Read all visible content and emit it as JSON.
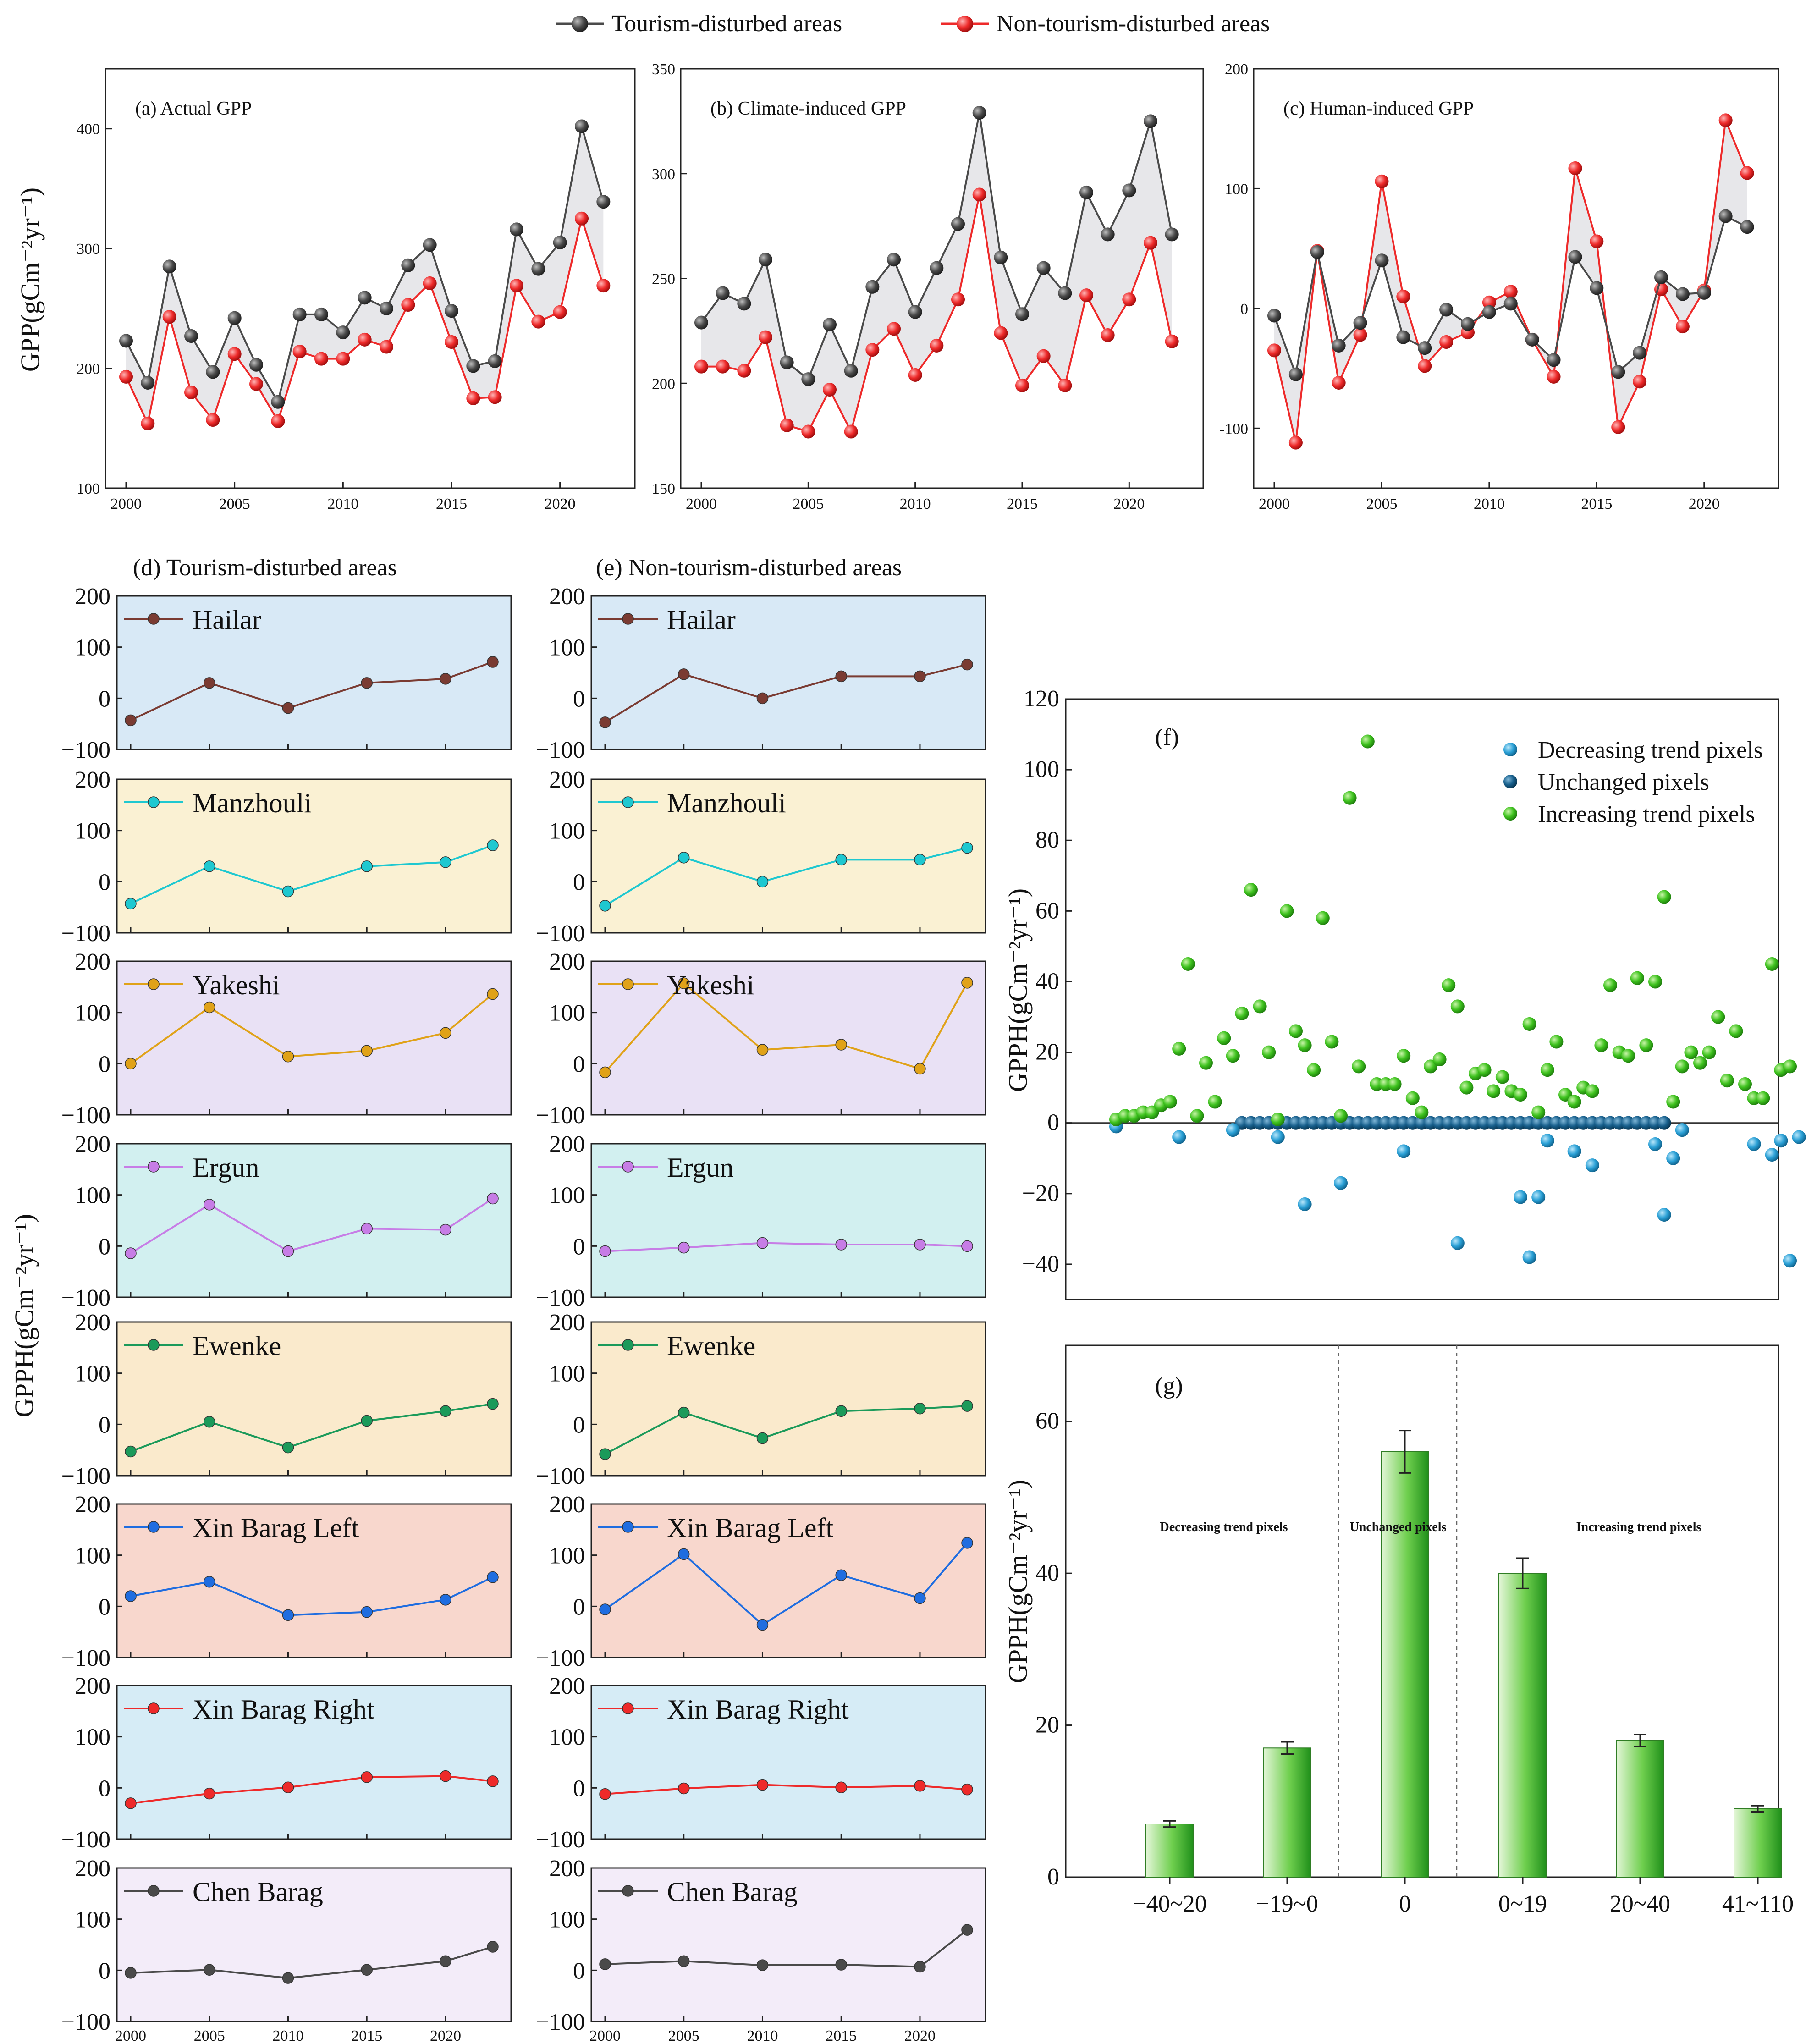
{
  "legend_top": {
    "tourism": "Tourism-disturbed areas",
    "non_tourism": "Non-tourism-disturbed areas"
  },
  "colors": {
    "tourism": "#4a4a4a",
    "non_tourism": "#ee2a2a",
    "fill": "#e4e4e8",
    "green": "#3ec21e",
    "decrease": "#2aa0d6",
    "unchanged": "#175f8c"
  },
  "axis_labels": {
    "gpp": "GPP(gCm⁻²yr⁻¹)",
    "gpph": "GPPH(gCm⁻²yr⁻¹)"
  },
  "section_titles": {
    "d": "(d) Tourism-disturbed areas",
    "e": "(e) Non-tourism-disturbed areas"
  },
  "chart_data": [
    {
      "id": "a",
      "type": "line",
      "title": "(a) Actual GPP",
      "x": [
        2000,
        2001,
        2002,
        2003,
        2004,
        2005,
        2006,
        2007,
        2008,
        2009,
        2010,
        2011,
        2012,
        2013,
        2014,
        2015,
        2016,
        2017,
        2018,
        2019,
        2020,
        2021,
        2022
      ],
      "series": [
        {
          "name": "Tourism-disturbed areas",
          "values": [
            223,
            188,
            285,
            227,
            197,
            242,
            203,
            172,
            245,
            245,
            230,
            259,
            250,
            286,
            303,
            248,
            202,
            206,
            316,
            283,
            305,
            402,
            339
          ]
        },
        {
          "name": "Non-tourism-disturbed areas",
          "values": [
            193,
            154,
            243,
            180,
            157,
            212,
            187,
            156,
            214,
            208,
            208,
            224,
            218,
            253,
            271,
            222,
            175,
            176,
            269,
            239,
            247,
            325,
            269
          ]
        }
      ],
      "ylim": [
        100,
        450
      ],
      "yticks": [
        100,
        200,
        300,
        400
      ],
      "xticks": [
        2000,
        2005,
        2010,
        2015,
        2020
      ]
    },
    {
      "id": "b",
      "type": "line",
      "title": "(b) Climate-induced  GPP",
      "x": [
        2000,
        2001,
        2002,
        2003,
        2004,
        2005,
        2006,
        2007,
        2008,
        2009,
        2010,
        2011,
        2012,
        2013,
        2014,
        2015,
        2016,
        2017,
        2018,
        2019,
        2020,
        2021,
        2022
      ],
      "series": [
        {
          "name": "Tourism-disturbed areas",
          "values": [
            229,
            243,
            238,
            259,
            210,
            202,
            228,
            206,
            246,
            259,
            234,
            255,
            276,
            329,
            260,
            233,
            255,
            243,
            291,
            271,
            292,
            325,
            271
          ]
        },
        {
          "name": "Non-tourism-disturbed areas",
          "values": [
            208,
            208,
            206,
            222,
            180,
            177,
            197,
            177,
            216,
            226,
            204,
            218,
            240,
            290,
            224,
            199,
            213,
            199,
            242,
            223,
            240,
            267,
            220
          ]
        }
      ],
      "ylim": [
        150,
        350
      ],
      "yticks": [
        150,
        200,
        250,
        300,
        350
      ],
      "xticks": [
        2000,
        2005,
        2010,
        2015,
        2020
      ]
    },
    {
      "id": "c",
      "type": "line",
      "title": "(c) Human-induced  GPP",
      "x": [
        2000,
        2001,
        2002,
        2003,
        2004,
        2005,
        2006,
        2007,
        2008,
        2009,
        2010,
        2011,
        2012,
        2013,
        2014,
        2015,
        2016,
        2017,
        2018,
        2019,
        2020,
        2021,
        2022
      ],
      "series": [
        {
          "name": "Tourism-disturbed areas",
          "values": [
            -6,
            -55,
            47,
            -31,
            -12,
            40,
            -24,
            -33,
            -1,
            -13,
            -3,
            4,
            -26,
            -43,
            43,
            17,
            -53,
            -37,
            26,
            12,
            13,
            77,
            68
          ]
        },
        {
          "name": "Non-tourism-disturbed areas",
          "values": [
            -35,
            -112,
            48,
            -62,
            -22,
            106,
            10,
            -48,
            -28,
            -20,
            5,
            14,
            -26,
            -57,
            117,
            56,
            -99,
            -61,
            16,
            -15,
            15,
            157,
            113
          ]
        }
      ],
      "ylim": [
        -150,
        200
      ],
      "yticks": [
        -100,
        0,
        100,
        200
      ],
      "yticklabels": [
        "-100",
        "0",
        "100",
        "200"
      ],
      "xticks": [
        2000,
        2005,
        2010,
        2015,
        2020
      ]
    },
    {
      "id": "d",
      "type": "line",
      "title": "(d) Tourism-disturbed areas",
      "x": [
        2000,
        2005,
        2010,
        2015,
        2020,
        2023
      ],
      "ylim": [
        -100,
        200
      ],
      "yticks": [
        -100,
        0,
        100,
        200
      ],
      "xticks": [
        2000,
        2005,
        2010,
        2015,
        2020
      ],
      "counties": [
        {
          "name": "Hailar",
          "color": "#7a3b32",
          "bg": "#d8e9f6",
          "values": [
            -43,
            30,
            -19,
            30,
            38,
            71
          ]
        },
        {
          "name": "Manzhouli",
          "color": "#1ec8d0",
          "bg": "#faf1d3",
          "values": [
            -43,
            30,
            -19,
            30,
            38,
            71
          ]
        },
        {
          "name": "Yakeshi",
          "color": "#e0a218",
          "bg": "#e9e1f5",
          "values": [
            0,
            110,
            14,
            25,
            60,
            136
          ]
        },
        {
          "name": "Ergun",
          "color": "#c77de6",
          "bg": "#d2f0f0",
          "values": [
            -14,
            81,
            -10,
            34,
            32,
            93
          ]
        },
        {
          "name": "Ewenke",
          "color": "#1b9a5a",
          "bg": "#faeacc",
          "values": [
            -53,
            5,
            -45,
            7,
            26,
            40
          ]
        },
        {
          "name": "Xin Barag Left",
          "color": "#1f6de0",
          "bg": "#f8d7cd",
          "values": [
            20,
            48,
            -17,
            -11,
            13,
            57
          ]
        },
        {
          "name": "Xin Barag Right",
          "color": "#ee2a2a",
          "bg": "#d6ecf6",
          "values": [
            -30,
            -11,
            1,
            21,
            23,
            13
          ]
        },
        {
          "name": "Chen Barag",
          "color": "#4a4a4a",
          "bg": "#f3ecf9",
          "values": [
            -5,
            1,
            -15,
            1,
            18,
            46
          ]
        }
      ]
    },
    {
      "id": "e",
      "type": "line",
      "title": "(e) Non-tourism-disturbed areas",
      "x": [
        2000,
        2005,
        2010,
        2015,
        2020,
        2023
      ],
      "ylim": [
        -100,
        200
      ],
      "yticks": [
        -100,
        0,
        100,
        200
      ],
      "xticks": [
        2000,
        2005,
        2010,
        2015,
        2020
      ],
      "counties": [
        {
          "name": "Hailar",
          "color": "#7a3b32",
          "bg": "#d8e9f6",
          "values": [
            -47,
            47,
            0,
            43,
            43,
            66
          ]
        },
        {
          "name": "Manzhouli",
          "color": "#1ec8d0",
          "bg": "#faf1d3",
          "values": [
            -47,
            47,
            0,
            43,
            43,
            66
          ]
        },
        {
          "name": "Yakeshi",
          "color": "#e0a218",
          "bg": "#e9e1f5",
          "values": [
            -17,
            157,
            27,
            37,
            -10,
            158
          ]
        },
        {
          "name": "Ergun",
          "color": "#c77de6",
          "bg": "#d2f0f0",
          "values": [
            -10,
            -3,
            6,
            3,
            3,
            0
          ]
        },
        {
          "name": "Ewenke",
          "color": "#1b9a5a",
          "bg": "#faeacc",
          "values": [
            -58,
            23,
            -27,
            26,
            31,
            36
          ]
        },
        {
          "name": "Xin Barag Left",
          "color": "#1f6de0",
          "bg": "#f8d7cd",
          "values": [
            -6,
            102,
            -36,
            61,
            16,
            124
          ]
        },
        {
          "name": "Xin Barag Right",
          "color": "#ee2a2a",
          "bg": "#d6ecf6",
          "values": [
            -12,
            -1,
            6,
            1,
            4,
            -3
          ]
        },
        {
          "name": "Chen Barag",
          "color": "#4a4a4a",
          "bg": "#f3ecf9",
          "values": [
            12,
            18,
            10,
            11,
            7,
            79
          ]
        }
      ]
    },
    {
      "id": "f",
      "type": "scatter",
      "title": "(f)",
      "legend": [
        "Decreasing trend pixels",
        "Unchanged pixels",
        "Increasing trend pixels"
      ],
      "ylim": [
        -50,
        120
      ],
      "yticks": [
        -40,
        -20,
        0,
        20,
        40,
        60,
        80,
        100,
        120
      ],
      "increasing": [
        [
          1,
          1
        ],
        [
          2,
          2
        ],
        [
          3,
          2
        ],
        [
          4,
          3
        ],
        [
          5,
          3
        ],
        [
          6,
          5
        ],
        [
          7,
          6
        ],
        [
          8,
          21
        ],
        [
          9,
          45
        ],
        [
          10,
          2
        ],
        [
          11,
          17
        ],
        [
          12,
          6
        ],
        [
          13,
          24
        ],
        [
          14,
          19
        ],
        [
          15,
          31
        ],
        [
          16,
          66
        ],
        [
          17,
          33
        ],
        [
          18,
          20
        ],
        [
          19,
          1
        ],
        [
          20,
          60
        ],
        [
          21,
          26
        ],
        [
          22,
          22
        ],
        [
          23,
          15
        ],
        [
          24,
          58
        ],
        [
          25,
          23
        ],
        [
          26,
          2
        ],
        [
          27,
          92
        ],
        [
          28,
          16
        ],
        [
          29,
          108
        ],
        [
          30,
          11
        ],
        [
          31,
          11
        ],
        [
          32,
          11
        ],
        [
          33,
          19
        ],
        [
          34,
          7
        ],
        [
          35,
          3
        ],
        [
          36,
          16
        ],
        [
          37,
          18
        ],
        [
          38,
          39
        ],
        [
          39,
          33
        ],
        [
          40,
          10
        ],
        [
          41,
          14
        ],
        [
          42,
          15
        ],
        [
          43,
          9
        ],
        [
          44,
          13
        ],
        [
          45,
          9
        ],
        [
          46,
          8
        ],
        [
          47,
          28
        ],
        [
          48,
          3
        ],
        [
          49,
          15
        ],
        [
          50,
          23
        ],
        [
          51,
          8
        ],
        [
          52,
          6
        ],
        [
          53,
          10
        ],
        [
          54,
          9
        ],
        [
          55,
          22
        ],
        [
          56,
          39
        ],
        [
          57,
          20
        ],
        [
          58,
          19
        ],
        [
          59,
          41
        ],
        [
          60,
          22
        ],
        [
          61,
          40
        ],
        [
          62,
          64
        ],
        [
          63,
          6
        ],
        [
          64,
          16
        ],
        [
          65,
          20
        ],
        [
          66,
          17
        ],
        [
          67,
          20
        ],
        [
          68,
          30
        ],
        [
          69,
          12
        ],
        [
          70,
          26
        ],
        [
          71,
          11
        ],
        [
          72,
          7
        ],
        [
          73,
          7
        ],
        [
          74,
          45
        ],
        [
          75,
          15
        ],
        [
          76,
          16
        ]
      ],
      "decreasing": [
        [
          1,
          -1
        ],
        [
          8,
          -4
        ],
        [
          14,
          -2
        ],
        [
          19,
          -4
        ],
        [
          22,
          -23
        ],
        [
          26,
          -17
        ],
        [
          33,
          -8
        ],
        [
          39,
          -34
        ],
        [
          46,
          -21
        ],
        [
          47,
          -38
        ],
        [
          48,
          -21
        ],
        [
          49,
          -5
        ],
        [
          52,
          -8
        ],
        [
          54,
          -12
        ],
        [
          61,
          -6
        ],
        [
          62,
          -26
        ],
        [
          63,
          -10
        ],
        [
          64,
          -2
        ],
        [
          72,
          -6
        ],
        [
          74,
          -9
        ],
        [
          75,
          -5
        ],
        [
          76,
          -39
        ],
        [
          77,
          -4
        ]
      ],
      "unchanged_x_range": [
        15,
        62
      ]
    },
    {
      "id": "g",
      "type": "bar",
      "title": "(g)",
      "categories": [
        "−40~20",
        "−19~0",
        "0",
        "0~19",
        "20~40",
        "41~110"
      ],
      "values": [
        7,
        17,
        56,
        40,
        18,
        9
      ],
      "errors": [
        0.4,
        0.8,
        2.8,
        2.0,
        0.8,
        0.4
      ],
      "ylim": [
        0,
        70
      ],
      "yticks": [
        0,
        20,
        40,
        60
      ],
      "groups": [
        "Decreasing trend pixels",
        "Unchanged pixels",
        "Increasing trend pixels"
      ]
    }
  ]
}
